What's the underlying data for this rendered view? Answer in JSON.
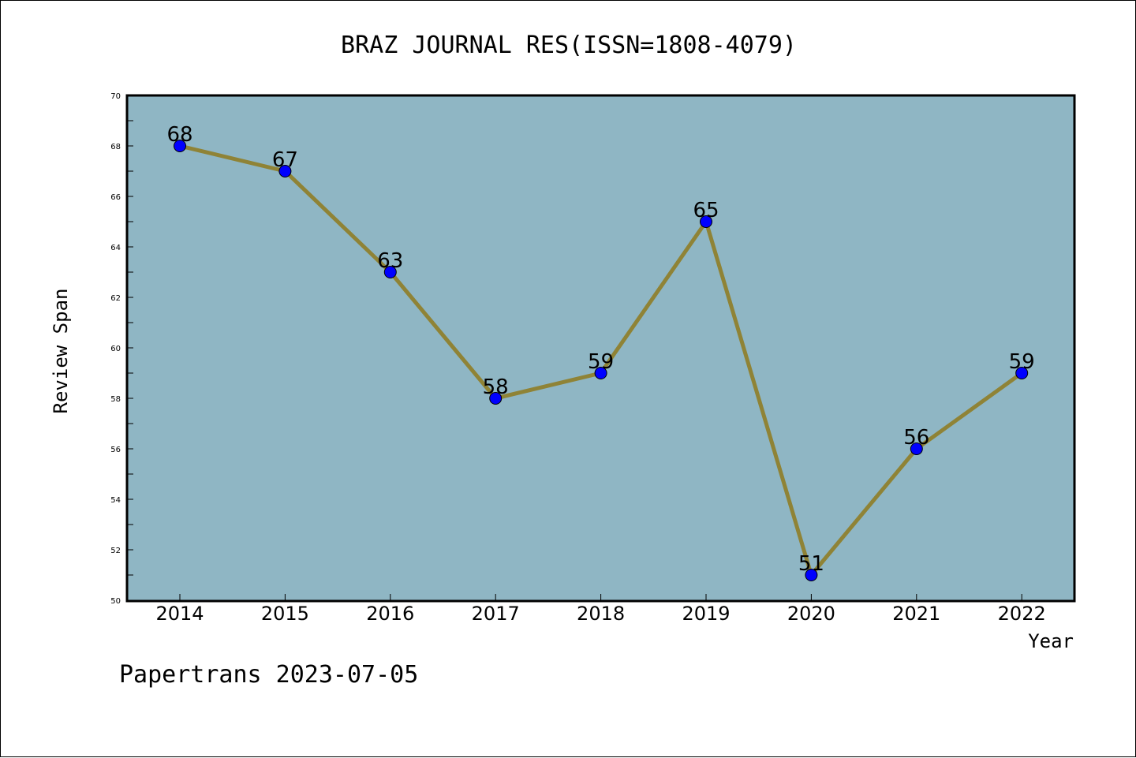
{
  "chart_data": {
    "type": "line",
    "title": "BRAZ JOURNAL RES(ISSN=1808-4079)",
    "xlabel": "Year",
    "ylabel": "Review Span",
    "categories": [
      "2014",
      "2015",
      "2016",
      "2017",
      "2018",
      "2019",
      "2020",
      "2021",
      "2022"
    ],
    "series": [
      {
        "values": [
          68,
          67,
          63,
          58,
          59,
          65,
          51,
          56,
          59
        ]
      }
    ],
    "ylim": [
      50,
      70
    ],
    "yticks": [
      "50",
      "52",
      "54",
      "56",
      "58",
      "60",
      "62",
      "64",
      "66",
      "68",
      "70"
    ],
    "grid": false,
    "colors": {
      "plot_background": "#8fb6c4",
      "line": "#8f8336",
      "marker": "#0000ff"
    }
  },
  "footer": "Papertrans 2023-07-05"
}
